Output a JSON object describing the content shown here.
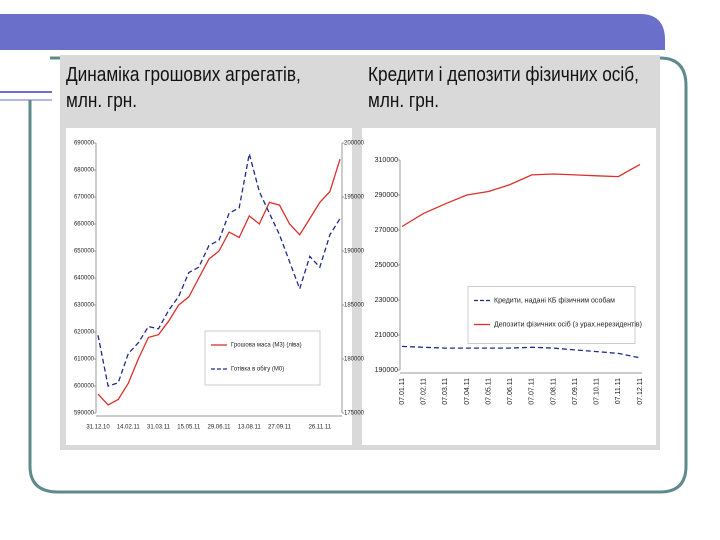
{
  "chart_data": [
    {
      "type": "line",
      "title": "Динаміка грошових агрегатів, млн. грн.",
      "categories": [
        "31.12.10",
        null,
        null,
        "14.02.11",
        null,
        null,
        "31.03.11",
        null,
        null,
        "15.05.11",
        null,
        null,
        "29.06.11",
        null,
        null,
        "13.08.11",
        null,
        null,
        "27.09.11",
        null,
        null,
        null,
        "26.11.11",
        null,
        null
      ],
      "series": [
        {
          "name": "Грошова маса (М3) (ліва)",
          "color": "#d9312b",
          "dash": false,
          "values": [
            597000,
            593000,
            595000,
            601000,
            610000,
            618000,
            619000,
            624000,
            630000,
            633000,
            640000,
            647000,
            650000,
            657000,
            655000,
            663000,
            660000,
            668000,
            667000,
            660000,
            656000,
            662000,
            668000,
            672000,
            684000
          ]
        },
        {
          "name": "Готівка в обігу (М0)",
          "color": "#1f2a8c",
          "dash": true,
          "axis": "y2",
          "values": [
            182200,
            177500,
            177800,
            180500,
            181500,
            183000,
            182800,
            184500,
            185800,
            188000,
            188500,
            190500,
            191000,
            193500,
            194000,
            199000,
            195500,
            193500,
            191500,
            189000,
            186500,
            189500,
            188500,
            191500,
            193000
          ]
        }
      ],
      "ylim": [
        590000,
        690000
      ],
      "yticks": [
        590000,
        600000,
        610000,
        620000,
        630000,
        640000,
        650000,
        660000,
        670000,
        680000,
        690000
      ],
      "y2lim": [
        175000,
        200000
      ],
      "y2ticks": [
        175000,
        180000,
        185000,
        190000,
        195000,
        200000
      ],
      "legend": "lower right"
    },
    {
      "type": "line",
      "title": "Кредити і депозити фізичних осіб, млн. грн.",
      "categories": [
        "07.01.11",
        "07.02.11",
        "07.03.11",
        "07.04.11",
        "07.05.11",
        "07.06.11",
        "07.07.11",
        "07.08.11",
        "07.09.11",
        "07.10.11",
        "07.11.11",
        "07.12.11"
      ],
      "series": [
        {
          "name": "Кредити, надані КБ фізичним особам",
          "color": "#1f2a8c",
          "dash": true,
          "values": [
            203500,
            203000,
            202500,
            202500,
            202500,
            202500,
            203000,
            202500,
            201500,
            200500,
            199500,
            197000
          ]
        },
        {
          "name": "Депозити фізичних осіб (з урах.нерезидентів)",
          "color": "#d9312b",
          "dash": false,
          "values": [
            272000,
            279500,
            285000,
            290000,
            292000,
            296000,
            301500,
            302000,
            301500,
            301000,
            300500,
            307500
          ]
        }
      ],
      "ylim": [
        190000,
        310000
      ],
      "yticks": [
        190000,
        210000,
        230000,
        250000,
        270000,
        290000,
        310000
      ],
      "legend": "center right"
    }
  ]
}
